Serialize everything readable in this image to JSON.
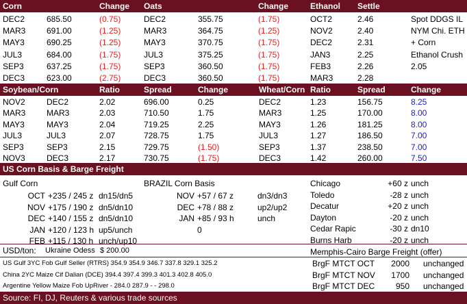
{
  "corn_header": {
    "c1": "Corn",
    "c2": "Change",
    "c3": "Oats",
    "c4": "Change",
    "c5": "Ethanol",
    "c6": "Settle"
  },
  "corn_rows": [
    {
      "m": "DEC2",
      "p": "685.50",
      "ch": "(0.75)",
      "om": "DEC2",
      "op": "355.75",
      "och": "(1.75)",
      "em": "OCT2",
      "ep": "2.46",
      "note": "Spot DDGS IL"
    },
    {
      "m": "MAR3",
      "p": "691.00",
      "ch": "(1.25)",
      "om": "MAR3",
      "op": "364.75",
      "och": "(1.25)",
      "em": "NOV2",
      "ep": "2.40",
      "note": "NYM Chi. ETH"
    },
    {
      "m": "MAY3",
      "p": "690.25",
      "ch": "(1.25)",
      "om": "MAY3",
      "op": "370.75",
      "och": "(1.75)",
      "em": "DEC2",
      "ep": "2.31",
      "note": "+ Corn"
    },
    {
      "m": "JUL3",
      "p": "684.00",
      "ch": "(1.75)",
      "om": "JUL3",
      "op": "375.25",
      "och": "(1.75)",
      "em": "JAN3",
      "ep": "2.25",
      "note": "Ethanol Crush"
    },
    {
      "m": "SEP3",
      "p": "637.25",
      "ch": "(1.75)",
      "om": "SEP3",
      "op": "360.50",
      "och": "(1.75)",
      "em": "FEB3",
      "ep": "2.26",
      "note": "2.05"
    },
    {
      "m": "DEC3",
      "p": "623.00",
      "ch": "(2.75)",
      "om": "DEC3",
      "op": "360.50",
      "och": "(1.75)",
      "em": "MAR3",
      "ep": "2.28",
      "note": ""
    }
  ],
  "spread_header": {
    "c1": "Soybean/Corn",
    "c2": "Ratio",
    "c3": "Spread",
    "c4": "Change",
    "c5": "Wheat/Corn",
    "c6": "Ratio",
    "c7": "Spread",
    "c8": "Change"
  },
  "spread_rows": [
    {
      "a": "NOV2",
      "b": "DEC2",
      "r": "2.02",
      "s": "696.00",
      "ch": "0.25",
      "red": false,
      "w": "DEC2",
      "wr": "1.23",
      "ws": "156.75",
      "wch": "8.25"
    },
    {
      "a": "MAR3",
      "b": "MAR3",
      "r": "2.03",
      "s": "710.50",
      "ch": "1.75",
      "red": false,
      "w": "MAR3",
      "wr": "1.25",
      "ws": "170.00",
      "wch": "8.00"
    },
    {
      "a": "MAY3",
      "b": "MAY3",
      "r": "2.04",
      "s": "719.25",
      "ch": "2.25",
      "red": false,
      "w": "MAY3",
      "wr": "1.26",
      "ws": "181.25",
      "wch": "8.00"
    },
    {
      "a": "JUL3",
      "b": "JUL3",
      "r": "2.07",
      "s": "728.75",
      "ch": "1.75",
      "red": false,
      "w": "JUL3",
      "wr": "1.27",
      "ws": "186.50",
      "wch": "7.00"
    },
    {
      "a": "SEP3",
      "b": "SEP3",
      "r": "2.15",
      "s": "729.75",
      "ch": "(1.50)",
      "red": true,
      "w": "SEP3",
      "wr": "1.37",
      "ws": "238.50",
      "wch": "7.00"
    },
    {
      "a": "NOV3",
      "b": "DEC3",
      "r": "2.17",
      "s": "730.75",
      "ch": "(1.75)",
      "red": true,
      "w": "DEC3",
      "wr": "1.42",
      "ws": "260.00",
      "wch": "7.50"
    }
  ],
  "basis_header": "US Corn Basis & Barge Freight",
  "gulf_title": "Gulf Corn",
  "brazil_title": "BRAZIL Corn Basis",
  "gulf_rows": [
    {
      "m": "OCT",
      "v": "+235 / 245 z",
      "ch": "dn15/dn5"
    },
    {
      "m": "NOV",
      "v": "+175 / 190 z",
      "ch": "dn5/dn10"
    },
    {
      "m": "DEC",
      "v": "+140 / 155 z",
      "ch": "dn5/dn10"
    },
    {
      "m": "JAN",
      "v": "+120  / 123 h",
      "ch": "up5/unch"
    },
    {
      "m": "FEB",
      "v": "+115  / 130 h",
      "ch": "unch/up10"
    }
  ],
  "brazil_rows": [
    {
      "m": "NOV",
      "v": "+57 / 67 z",
      "ch": "dn3/dn3"
    },
    {
      "m": "DEC",
      "v": "+78 / 88 z",
      "ch": "up2/up2"
    },
    {
      "m": "JAN",
      "v": "+85 / 93 h",
      "ch": "unch"
    },
    {
      "m": "",
      "v": "0",
      "ch": ""
    }
  ],
  "city_rows": [
    {
      "city": "Chicago",
      "v": "+60 z",
      "ch": "unch"
    },
    {
      "city": "Toledo",
      "v": "-28 z",
      "ch": "unch"
    },
    {
      "city": "Decatur",
      "v": "+20 z",
      "ch": "unch"
    },
    {
      "city": "Dayton",
      "v": "-20 z",
      "ch": "unch"
    },
    {
      "city": "Cedar Rapic",
      "v": "-30 z",
      "ch": "dn10"
    },
    {
      "city": "Burns Harb",
      "v": "-20 z",
      "ch": "unch"
    }
  ],
  "usd_label": "USD/ton:",
  "odessa_label": "Ukraine Odess",
  "odessa_value": "$    200.00",
  "freight_title": "Memphis-Cairo Barge Freight (offer)",
  "fob_rows": [
    {
      "label": "US Gulf  3YC Fob Gulf Seller (RTRS) 354.9  354.9  346.7  337.8  329.1  325.2"
    },
    {
      "label": "China    2YC Maize Cif Dalian (DCE) 394.4  397.4  399.3  401.3  402.8  405.0"
    },
    {
      "label": "Argentine  Yellow Maize Fob UpRiver    -    284.0  287.9   -    -   298.0"
    }
  ],
  "freight_rows": [
    {
      "l": "BrgF MTCT OCT",
      "v": "2000",
      "ch": "unchanged"
    },
    {
      "l": "BrgF MTCT NOV",
      "v": "1700",
      "ch": "unchanged"
    },
    {
      "l": "BrgF MTCT DEC",
      "v": "950",
      "ch": "unchanged"
    }
  ],
  "source": "Source: FI, DJ, Reuters & various trade sources",
  "colors": {
    "band": "#6b1020",
    "negative": "#e02020",
    "wheat_change": "#1a1ad0"
  }
}
